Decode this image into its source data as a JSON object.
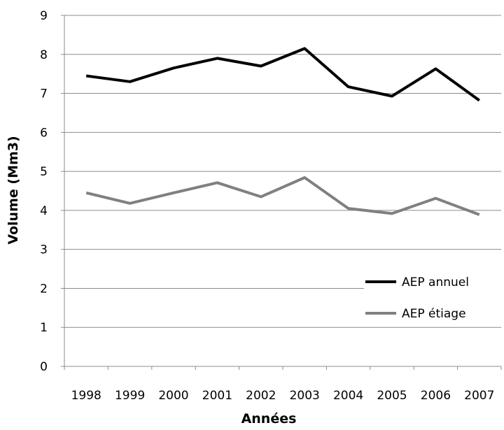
{
  "chart_data": {
    "type": "line",
    "xlabel": "Années",
    "ylabel": "Volume (Mm3)",
    "x": [
      "1998",
      "1999",
      "2000",
      "2001",
      "2002",
      "2003",
      "2004",
      "2005",
      "2006",
      "2007"
    ],
    "ylim": [
      0,
      9
    ],
    "yticks": [
      "0",
      "1",
      "2",
      "3",
      "4",
      "5",
      "6",
      "7",
      "8",
      "9"
    ],
    "grid": "horizontal",
    "legend_position": "bottom-right",
    "series": [
      {
        "name": "AEP annuel",
        "color": "#000000",
        "values": [
          7.45,
          7.3,
          7.65,
          7.9,
          7.7,
          8.15,
          7.17,
          6.93,
          7.63,
          6.82
        ]
      },
      {
        "name": "AEP étiage",
        "color": "#808080",
        "values": [
          4.45,
          4.18,
          4.45,
          4.71,
          4.35,
          4.84,
          4.05,
          3.92,
          4.31,
          3.89
        ]
      }
    ]
  }
}
